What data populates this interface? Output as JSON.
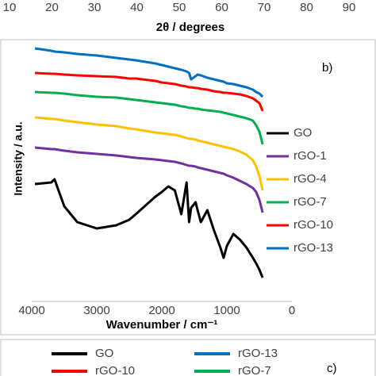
{
  "chart_data": [
    {
      "type": "axis",
      "xlabel": "2θ / degrees",
      "xlim": [
        10,
        90
      ],
      "xticks": [
        10,
        20,
        30,
        40,
        50,
        60,
        70,
        80,
        90
      ]
    },
    {
      "type": "line",
      "panel_label": "b)",
      "xlabel": "Wavenumber / cm⁻¹",
      "ylabel": "Intensity / a.u.",
      "xlim": [
        4000,
        0
      ],
      "xticks": [
        4000,
        3000,
        2000,
        1000,
        0
      ],
      "ylim": [
        0,
        330
      ],
      "legend": "right",
      "x": [
        3950,
        3700,
        3650,
        3500,
        3300,
        3000,
        2700,
        2500,
        2400,
        2100,
        2000,
        1900,
        1800,
        1700,
        1620,
        1580,
        1550,
        1480,
        1450,
        1400,
        1300,
        1200,
        1100,
        1050,
        1000,
        900,
        800,
        700,
        600,
        550,
        500,
        450
      ],
      "series": [
        {
          "name": "GO",
          "color": "#000000",
          "values": [
            148,
            150,
            154,
            120,
            100,
            92,
            96,
            103,
            110,
            132,
            138,
            145,
            140,
            110,
            150,
            100,
            118,
            125,
            115,
            100,
            115,
            90,
            68,
            55,
            70,
            85,
            78,
            68,
            55,
            48,
            40,
            30
          ]
        },
        {
          "name": "rGO-1",
          "color": "#7030a0",
          "values": [
            194,
            192,
            192,
            190,
            188,
            186,
            184,
            182,
            181,
            179,
            178,
            177,
            176,
            174,
            172,
            171,
            171,
            170,
            169,
            168,
            166,
            164,
            162,
            161,
            159,
            156,
            152,
            148,
            143,
            138,
            128,
            112
          ]
        },
        {
          "name": "rGO-4",
          "color": "#ffc000",
          "values": [
            232,
            230,
            230,
            228,
            226,
            223,
            221,
            218,
            217,
            213,
            212,
            211,
            210,
            208,
            206,
            205,
            205,
            204,
            203,
            202,
            200,
            198,
            196,
            195,
            194,
            192,
            189,
            185,
            178,
            170,
            158,
            140
          ]
        },
        {
          "name": "rGO-7",
          "color": "#00b050",
          "values": [
            264,
            263,
            263,
            262,
            260,
            258,
            257,
            255,
            254,
            251,
            250,
            249,
            248,
            246,
            245,
            244,
            244,
            243,
            243,
            242,
            241,
            240,
            239,
            238,
            237,
            235,
            233,
            231,
            228,
            222,
            214,
            198
          ]
        },
        {
          "name": "rGO-10",
          "color": "#ff0000",
          "values": [
            288,
            287,
            287,
            286,
            285,
            284,
            283,
            281,
            281,
            278,
            276,
            275,
            274,
            272,
            271,
            270,
            270,
            269,
            269,
            268,
            267,
            265,
            264,
            263,
            263,
            262,
            261,
            259,
            256,
            253,
            250,
            240
          ]
        },
        {
          "name": "rGO-13",
          "color": "#0070c0",
          "values": [
            319,
            316,
            315,
            314,
            312,
            310,
            307,
            305,
            304,
            300,
            298,
            296,
            294,
            292,
            290,
            288,
            280,
            284,
            286,
            285,
            282,
            280,
            278,
            277,
            275,
            274,
            272,
            270,
            267,
            264,
            262,
            258
          ]
        }
      ]
    },
    {
      "type": "legend",
      "panel_label": "c)",
      "series": [
        {
          "name": "GO",
          "color": "#000000"
        },
        {
          "name": "rGO-13",
          "color": "#0070c0"
        },
        {
          "name": "rGO-10",
          "color": "#ff0000"
        },
        {
          "name": "rGO-7",
          "color": "#00b050"
        }
      ]
    }
  ]
}
